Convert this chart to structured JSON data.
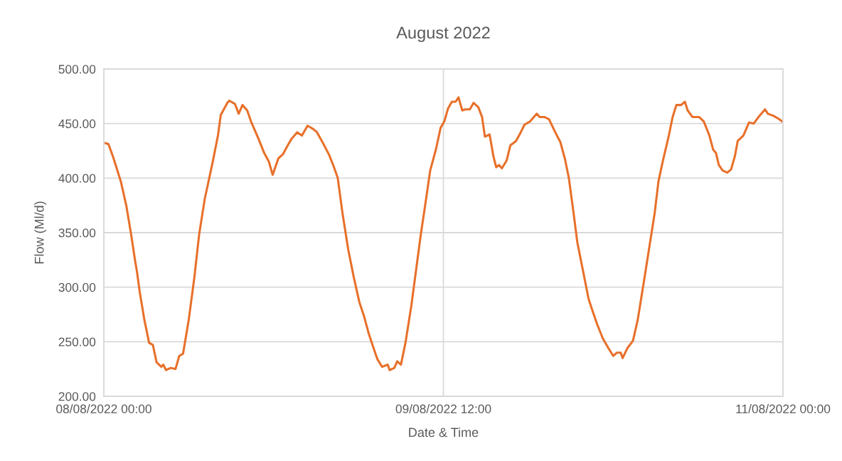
{
  "chart_data": {
    "type": "line",
    "title": "August 2022",
    "xlabel": "Date & Time",
    "ylabel": "Flow (Ml/d)",
    "xlim": [
      "2022-08-08T00:00",
      "2022-08-11T00:00"
    ],
    "xticks": [
      {
        "value": "2022-08-08T00:00",
        "label": "08/08/2022 00:00"
      },
      {
        "value": "2022-08-09T12:00",
        "label": "09/08/2022 12:00"
      },
      {
        "value": "2022-08-11T00:00",
        "label": "11/08/2022 00:00"
      }
    ],
    "ylim": [
      200,
      500
    ],
    "yticks": [
      {
        "value": 200,
        "label": "200.00"
      },
      {
        "value": 250,
        "label": "250.00"
      },
      {
        "value": 300,
        "label": "300.00"
      },
      {
        "value": 350,
        "label": "350.00"
      },
      {
        "value": 400,
        "label": "400.00"
      },
      {
        "value": 450,
        "label": "450.00"
      },
      {
        "value": 500,
        "label": "500.00"
      }
    ],
    "grid": true,
    "legend": false,
    "marker": "none",
    "line_style": "solid",
    "x": [
      "2022-08-08T00:12",
      "2022-08-08T00:30",
      "2022-08-08T01:00",
      "2022-08-08T01:48",
      "2022-08-08T02:24",
      "2022-08-08T02:54",
      "2022-08-08T03:18",
      "2022-08-08T03:30",
      "2022-08-08T03:48",
      "2022-08-08T04:18",
      "2022-08-08T04:48",
      "2022-08-08T05:12",
      "2022-08-08T05:36",
      "2022-08-08T06:06",
      "2022-08-08T06:18",
      "2022-08-08T06:36",
      "2022-08-08T07:06",
      "2022-08-08T07:36",
      "2022-08-08T08:00",
      "2022-08-08T08:24",
      "2022-08-08T09:00",
      "2022-08-08T09:36",
      "2022-08-08T10:06",
      "2022-08-08T10:42",
      "2022-08-08T11:18",
      "2022-08-08T11:30",
      "2022-08-08T12:06",
      "2022-08-08T12:24",
      "2022-08-08T13:06",
      "2022-08-08T13:18",
      "2022-08-08T13:54",
      "2022-08-08T14:18",
      "2022-08-08T14:42",
      "2022-08-08T15:12",
      "2022-08-08T15:36",
      "2022-08-08T16:00",
      "2022-08-08T16:24",
      "2022-08-08T17:00",
      "2022-08-08T17:30",
      "2022-08-08T17:54",
      "2022-08-08T18:30",
      "2022-08-08T19:00",
      "2022-08-08T19:30",
      "2022-08-08T19:54",
      "2022-08-08T20:30",
      "2022-08-08T21:00",
      "2022-08-08T21:36",
      "2022-08-08T22:12",
      "2022-08-08T22:36",
      "2022-08-08T23:18",
      "2022-08-08T23:54",
      "2022-08-09T00:24",
      "2022-08-09T00:48",
      "2022-08-09T01:18",
      "2022-08-09T01:54",
      "2022-08-09T02:30",
      "2022-08-09T03:06",
      "2022-08-09T03:36",
      "2022-08-09T04:06",
      "2022-08-09T04:36",
      "2022-08-09T05:00",
      "2022-08-09T05:30",
      "2022-08-09T06:06",
      "2022-08-09T06:18",
      "2022-08-09T06:48",
      "2022-08-09T07:06",
      "2022-08-09T07:30",
      "2022-08-09T08:00",
      "2022-08-09T08:36",
      "2022-08-09T09:12",
      "2022-08-09T09:36",
      "2022-08-09T10:06",
      "2022-08-09T10:36",
      "2022-08-09T11:12",
      "2022-08-09T11:42",
      "2022-08-09T12:06",
      "2022-08-09T12:30",
      "2022-08-09T12:54",
      "2022-08-09T13:18",
      "2022-08-09T13:36",
      "2022-08-09T14:00",
      "2022-08-09T14:18",
      "2022-08-09T14:48",
      "2022-08-09T15:12",
      "2022-08-09T15:42",
      "2022-08-09T16:06",
      "2022-08-09T16:24",
      "2022-08-09T16:54",
      "2022-08-09T17:18",
      "2022-08-09T17:36",
      "2022-08-09T17:54",
      "2022-08-09T18:12",
      "2022-08-09T18:42",
      "2022-08-09T19:06",
      "2022-08-09T19:42",
      "2022-08-09T20:12",
      "2022-08-09T20:36",
      "2022-08-09T21:12",
      "2022-08-09T21:54",
      "2022-08-09T22:12",
      "2022-08-09T22:42",
      "2022-08-09T23:12",
      "2022-08-09T23:48",
      "2022-08-10T00:24",
      "2022-08-10T00:54",
      "2022-08-10T01:18",
      "2022-08-10T01:48",
      "2022-08-10T02:12",
      "2022-08-10T02:48",
      "2022-08-10T03:24",
      "2022-08-10T03:54",
      "2022-08-10T04:18",
      "2022-08-10T04:54",
      "2022-08-10T05:30",
      "2022-08-10T06:00",
      "2022-08-10T06:24",
      "2022-08-10T06:48",
      "2022-08-10T07:00",
      "2022-08-10T07:30",
      "2022-08-10T08:06",
      "2022-08-10T08:36",
      "2022-08-10T09:12",
      "2022-08-10T09:48",
      "2022-08-10T10:24",
      "2022-08-10T10:48",
      "2022-08-10T11:18",
      "2022-08-10T11:54",
      "2022-08-10T12:18",
      "2022-08-10T12:42",
      "2022-08-10T13:12",
      "2022-08-10T13:36",
      "2022-08-10T13:54",
      "2022-08-10T14:24",
      "2022-08-10T15:06",
      "2022-08-10T15:36",
      "2022-08-10T16:12",
      "2022-08-10T16:36",
      "2022-08-10T16:54",
      "2022-08-10T17:12",
      "2022-08-10T17:36",
      "2022-08-10T18:06",
      "2022-08-10T18:30",
      "2022-08-10T18:54",
      "2022-08-10T19:12",
      "2022-08-10T19:48",
      "2022-08-10T20:24",
      "2022-08-10T20:54",
      "2022-08-10T21:30",
      "2022-08-10T22:06",
      "2022-08-10T22:24",
      "2022-08-10T23:00",
      "2022-08-10T23:36",
      "2022-08-10T23:54"
    ],
    "series": [
      {
        "color": "#e8702a",
        "values": [
          432,
          431,
          419,
          397,
          374,
          348,
          325,
          315,
          296,
          270,
          249,
          247,
          231,
          227,
          229,
          224,
          226,
          225,
          237,
          239,
          270,
          309,
          348,
          381,
          405,
          413,
          439,
          458,
          469,
          471,
          468,
          459,
          467,
          462,
          452,
          444,
          436,
          423,
          415,
          403,
          418,
          422,
          430,
          436,
          442,
          439,
          448,
          445,
          442,
          431,
          421,
          410,
          400,
          368,
          335,
          309,
          286,
          273,
          257,
          244,
          234,
          227,
          229,
          224,
          226,
          232,
          229,
          250,
          283,
          322,
          348,
          377,
          407,
          426,
          446,
          452,
          464,
          470,
          470,
          474,
          462,
          463,
          463,
          469,
          465,
          456,
          438,
          440,
          420,
          410,
          412,
          409,
          416,
          430,
          434,
          442,
          449,
          452,
          459,
          456,
          456,
          454,
          443,
          433,
          417,
          400,
          368,
          341,
          315,
          289,
          276,
          266,
          253,
          244,
          237,
          240,
          240,
          235,
          244,
          251,
          270,
          302,
          335,
          368,
          397,
          417,
          439,
          456,
          467,
          467,
          470,
          462,
          456,
          456,
          452,
          439,
          426,
          423,
          412,
          407,
          405,
          408,
          420,
          434,
          439,
          451,
          450,
          457,
          463,
          459,
          457,
          454,
          452
        ]
      }
    ]
  }
}
